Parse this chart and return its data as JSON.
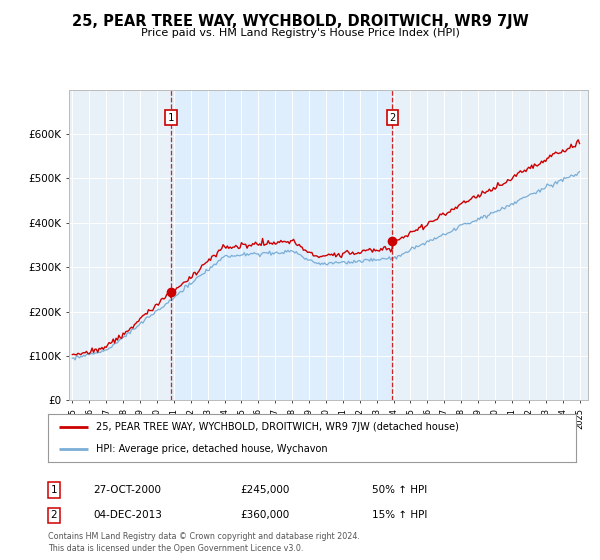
{
  "title": "25, PEAR TREE WAY, WYCHBOLD, DROITWICH, WR9 7JW",
  "subtitle": "Price paid vs. HM Land Registry's House Price Index (HPI)",
  "legend_label_red": "25, PEAR TREE WAY, WYCHBOLD, DROITWICH, WR9 7JW (detached house)",
  "legend_label_blue": "HPI: Average price, detached house, Wychavon",
  "sale1_date": "27-OCT-2000",
  "sale1_price": 245000,
  "sale1_pct": "50% ↑ HPI",
  "sale2_date": "04-DEC-2013",
  "sale2_price": 360000,
  "sale2_pct": "15% ↑ HPI",
  "footnote": "Contains HM Land Registry data © Crown copyright and database right 2024.\nThis data is licensed under the Open Government Licence v3.0.",
  "ylim": [
    0,
    700000
  ],
  "yticks": [
    0,
    100000,
    200000,
    300000,
    400000,
    500000,
    600000
  ],
  "ytick_labels": [
    "£0",
    "£100K",
    "£200K",
    "£300K",
    "£400K",
    "£500K",
    "£600K"
  ],
  "red_color": "#cc0000",
  "blue_color": "#7aaed6",
  "shade_color": "#ddeeff",
  "vline_color": "#cc0000",
  "bg_color": "#e8f0f8",
  "sale1_x": 2000.83,
  "sale2_x": 2013.92,
  "grid_color": "#ffffff",
  "spine_color": "#bbbbbb"
}
